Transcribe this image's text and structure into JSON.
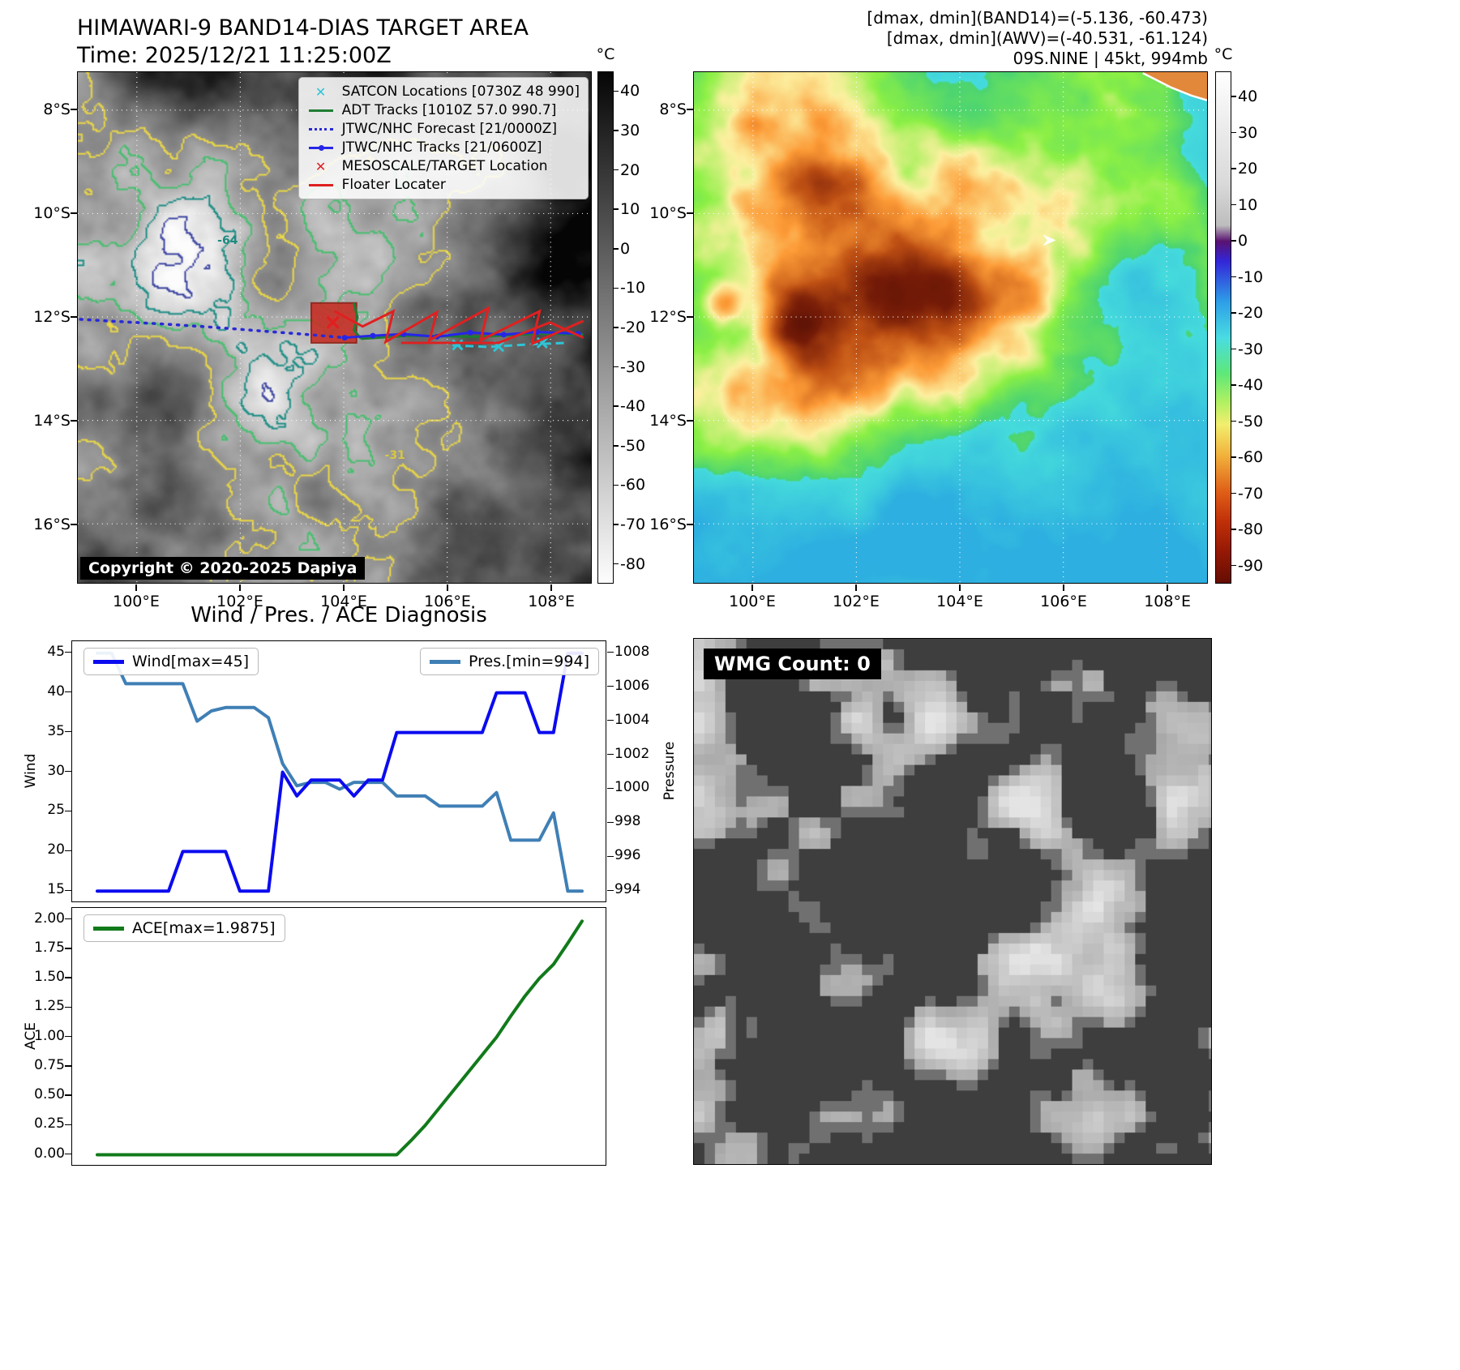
{
  "header": {
    "left_title": "HIMAWARI-9 BAND14-DIAS TARGET AREA",
    "left_time": "Time: 2025/12/21 11:25:00Z",
    "right_annotations": [
      "[dmax, dmin](BAND14)=(-5.136, -60.473)",
      "[dmax, dmin](AWV)=(-40.531, -61.124)",
      "09S.NINE | 45kt, 994mb"
    ]
  },
  "left_map": {
    "legend": [
      {
        "label": "SATCON Locations [0730Z 48 990]",
        "marker": "x",
        "color": "#2ec4d6"
      },
      {
        "label": "ADT Tracks [1010Z 57.0 990.7]",
        "marker": "line",
        "color": "#1e7d32"
      },
      {
        "label": "JTWC/NHC Forecast [21/0000Z]",
        "marker": "dotted-line",
        "color": "#2929d6"
      },
      {
        "label": "JTWC/NHC Tracks [21/0600Z]",
        "marker": "line-dot",
        "color": "#2626e8"
      },
      {
        "label": "MESOSCALE/TARGET Location",
        "marker": "x",
        "color": "#e02020"
      },
      {
        "label": "Floater Locater",
        "marker": "line",
        "color": "#e02020"
      }
    ],
    "copyright": "Copyright © 2020-2025 Dapiya",
    "colorbar_unit": "°C",
    "colorbar_ticks": [
      40,
      30,
      20,
      10,
      0,
      -10,
      -20,
      -30,
      -40,
      -50,
      -60,
      -70,
      -80
    ],
    "lat_ticks": [
      "8°S",
      "10°S",
      "12°S",
      "14°S",
      "16°S"
    ],
    "lon_ticks": [
      "100°E",
      "102°E",
      "104°E",
      "106°E",
      "108°E"
    ],
    "contour_labels": [
      {
        "text": "-31",
        "color": "#d8c742"
      },
      {
        "text": "-64",
        "color": "#1d8a80"
      }
    ]
  },
  "right_map": {
    "colorbar_unit": "°C",
    "colorbar_ticks": [
      40,
      30,
      20,
      10,
      0,
      -10,
      -20,
      -30,
      -40,
      -50,
      -60,
      -70,
      -80,
      -90
    ],
    "lat_ticks": [
      "8°S",
      "10°S",
      "12°S",
      "14°S",
      "16°S"
    ],
    "lon_ticks": [
      "100°E",
      "102°E",
      "104°E",
      "106°E",
      "108°E"
    ]
  },
  "wmg": {
    "label": "WMG Count: 0"
  },
  "chart_data": [
    {
      "type": "line",
      "title": "Wind / Pres. / ACE Diagnosis",
      "x_note": "time steps, x axis unlabeled in figure",
      "series": [
        {
          "name": "Wind[max=45]",
          "yaxis": "left",
          "color": "#0b0bf0",
          "values": [
            15,
            15,
            15,
            15,
            15,
            15,
            20,
            20,
            20,
            20,
            15,
            15,
            15,
            30,
            27,
            29,
            29,
            29,
            27,
            29,
            29,
            35,
            35,
            35,
            35,
            35,
            35,
            35,
            40,
            40,
            40,
            35,
            35,
            45,
            45
          ]
        },
        {
          "name": "Pres.[min=994]",
          "yaxis": "right",
          "color": "#3f7fb5",
          "values": [
            1008,
            1008,
            1006.2,
            1006.2,
            1006.2,
            1006.2,
            1006.2,
            1004,
            1004.6,
            1004.8,
            1004.8,
            1004.8,
            1004.2,
            1001.5,
            1000.2,
            1000.4,
            1000.4,
            1000,
            1000.4,
            1000.4,
            1000.4,
            999.6,
            999.6,
            999.6,
            999,
            999,
            999,
            999,
            999.8,
            997,
            997,
            997,
            998.6,
            994,
            994
          ]
        }
      ],
      "ylabel_left": "Wind",
      "ylabel_right": "Pressure",
      "yticks_left": [
        15,
        20,
        25,
        30,
        35,
        40,
        45
      ],
      "yticks_right": [
        994,
        996,
        998,
        1000,
        1002,
        1004,
        1006,
        1008
      ],
      "ylim_left": [
        13.5,
        46.5
      ],
      "ylim_right": [
        993.3,
        1008.7
      ],
      "grid": false,
      "legend_positions": [
        "upper left",
        "upper right"
      ]
    },
    {
      "type": "line",
      "x_note": "time steps, x axis unlabeled in figure",
      "series": [
        {
          "name": "ACE[max=1.9875]",
          "yaxis": "left",
          "color": "#117a1a",
          "values": [
            0,
            0,
            0,
            0,
            0,
            0,
            0,
            0,
            0,
            0,
            0,
            0,
            0,
            0,
            0,
            0,
            0,
            0,
            0,
            0,
            0,
            0,
            0.12,
            0.25,
            0.4,
            0.55,
            0.7,
            0.85,
            1,
            1.18,
            1.35,
            1.5,
            1.62,
            1.8,
            1.9875
          ]
        }
      ],
      "ylabel": "ACE",
      "yticks": [
        0,
        0.25,
        0.5,
        0.75,
        1,
        1.25,
        1.5,
        1.75,
        2
      ],
      "ylim": [
        -0.1,
        2.1
      ],
      "grid": false,
      "legend_positions": [
        "upper left"
      ]
    }
  ]
}
